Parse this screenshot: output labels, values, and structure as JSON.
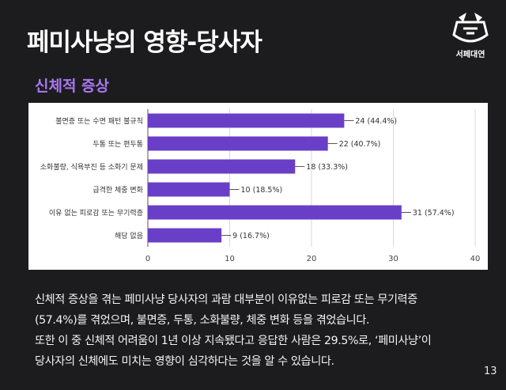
{
  "slide": {
    "title": "페미사냥의 영향-당사자",
    "subtitle": "신체적 증상",
    "page_number": "13",
    "logo_text": "서페대연",
    "description_lines": [
      "신체적 증상을 겪는 페미사냥 당사자의 과람 대부분이 이유없는 피로감 또는 무기력증",
      "(57.4%)를 겪었으며, 불면증, 두통, 소화불량, 체중 변화 등을 겪었습니다.",
      "또한 이 중 신체적 어려움이 1년 이상 지속됐다고 응답한 사람은 29.5%로, ‘페미사냥’이",
      "당사자의 신체에도 미치는 영향이 심각하다는 것을 알 수 있습니다."
    ]
  },
  "colors": {
    "background": "#1c1c1e",
    "accent": "#a978f2",
    "bar": "#6a3fc7"
  },
  "chart_data": {
    "type": "bar",
    "orientation": "horizontal",
    "categories": [
      "불면증 또는 수면 패턴 불규칙",
      "두통 또는 편두통",
      "소화불량, 식욕부진 등 소화기 문제",
      "급격한 체중 변화",
      "이유 없는 피로감 또는 무기력증",
      "해당 없음"
    ],
    "values": [
      24,
      22,
      18,
      10,
      31,
      9
    ],
    "value_labels": [
      "24 (44.4%)",
      "22 (40.7%)",
      "18 (33.3%)",
      "10 (18.5%)",
      "31 (57.4%)",
      "9 (16.7%)"
    ],
    "x_ticks": [
      "0",
      "10",
      "20",
      "30",
      "40"
    ],
    "xlim": [
      0,
      40
    ],
    "grid": true,
    "legend": "none"
  }
}
